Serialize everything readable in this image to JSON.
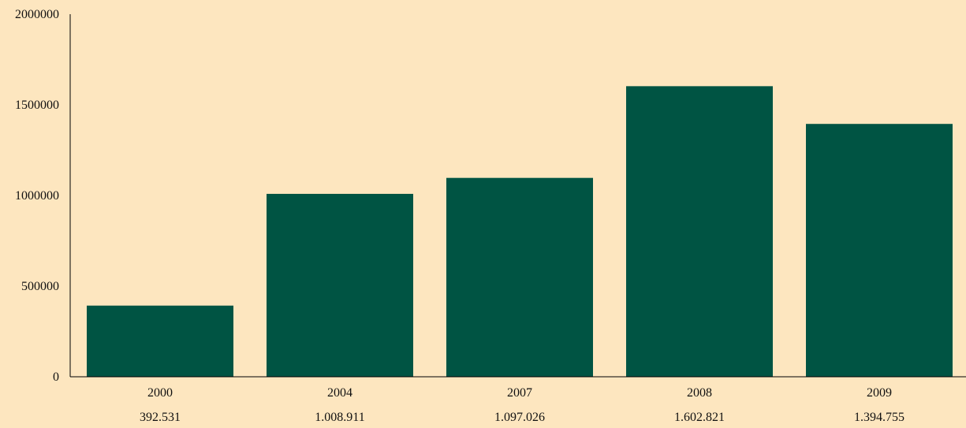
{
  "chart_data": {
    "type": "bar",
    "categories": [
      "2000",
      "2004",
      "2007",
      "2008",
      "2009"
    ],
    "values": [
      392531,
      1008911,
      1097026,
      1602821,
      1394755
    ],
    "value_labels": [
      "392.531",
      "1.008.911",
      "1.097.026",
      "1.602.821",
      "1.394.755"
    ],
    "y_ticks": [
      "0",
      "500000",
      "1000000",
      "1500000",
      "2000000"
    ],
    "ylim": [
      0,
      2000000
    ],
    "grid": false,
    "legend": "none"
  },
  "colors": {
    "background": "#fde6bf",
    "bar": "#005443",
    "axis": "#000000",
    "text": "#111111"
  }
}
